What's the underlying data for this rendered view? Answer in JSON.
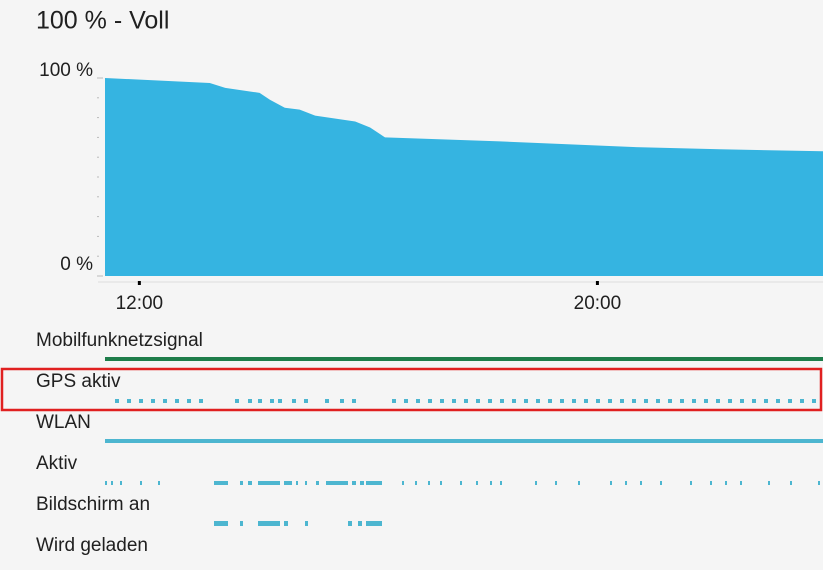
{
  "chart_data": {
    "type": "area",
    "title": "100 % - Voll",
    "color": "#35b4e1",
    "x": [
      11.4,
      13.23,
      13.5,
      14.1,
      14.28,
      14.54,
      14.8,
      15.07,
      15.77,
      16.03,
      16.29,
      18.3,
      20.75,
      22.14,
      23.94
    ],
    "values": [
      100,
      97.5,
      95,
      92.5,
      89,
      85,
      84,
      81,
      78,
      75,
      70,
      68,
      65,
      64,
      63
    ],
    "xlim": [
      11.4,
      23.94
    ],
    "ylim": [
      0,
      100
    ],
    "xticks": [
      {
        "value": 12,
        "label": "12:00"
      },
      {
        "value": 20,
        "label": "20:00"
      }
    ],
    "yticks": [
      {
        "value": 0,
        "label": "0 %"
      },
      {
        "value": 100,
        "label": "100 %"
      }
    ]
  },
  "rows": [
    {
      "label": "Mobilfunknetzsignal"
    },
    {
      "label": "GPS aktiv"
    },
    {
      "label": "WLAN"
    },
    {
      "label": "Aktiv"
    },
    {
      "label": "Bildschirm an"
    },
    {
      "label": "Wird geladen"
    }
  ]
}
